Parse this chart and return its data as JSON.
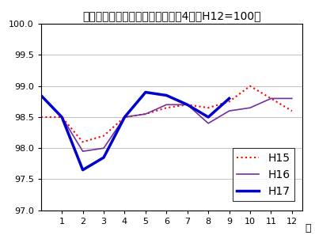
{
  "title": "生鮮食品を除く総合指数の動き　4市（H12=100）",
  "xlabel": "月",
  "ylim": [
    97.0,
    100.0
  ],
  "yticks": [
    97.0,
    97.5,
    98.0,
    98.5,
    99.0,
    99.5,
    100.0
  ],
  "xlim": [
    0,
    12.5
  ],
  "xticks": [
    1,
    2,
    3,
    4,
    5,
    6,
    7,
    8,
    9,
    10,
    11,
    12
  ],
  "H15_x": [
    0,
    1,
    2,
    3,
    4,
    5,
    6,
    7,
    8,
    9,
    10,
    11,
    12
  ],
  "H15": [
    98.5,
    98.5,
    98.1,
    98.2,
    98.5,
    98.55,
    98.65,
    98.7,
    98.65,
    98.75,
    99.0,
    98.8,
    98.6
  ],
  "H16_x": [
    0,
    1,
    2,
    3,
    4,
    5,
    6,
    7,
    8,
    9,
    10,
    11,
    12
  ],
  "H16": [
    98.85,
    98.5,
    97.95,
    98.0,
    98.5,
    98.55,
    98.7,
    98.7,
    98.4,
    98.6,
    98.65,
    98.8,
    98.8
  ],
  "H17_x": [
    0,
    1,
    2,
    3,
    4,
    5,
    6,
    7,
    8,
    9
  ],
  "H17": [
    98.85,
    98.5,
    97.65,
    97.85,
    98.5,
    98.9,
    98.85,
    98.7,
    98.5,
    98.8
  ],
  "H15_color": "#ff0000",
  "H16_color": "#7030a0",
  "H17_color": "#0000cc",
  "bg_color": "#ffffff",
  "grid_color": "#aaaaaa",
  "figsize": [
    3.98,
    3.02
  ],
  "dpi": 100
}
